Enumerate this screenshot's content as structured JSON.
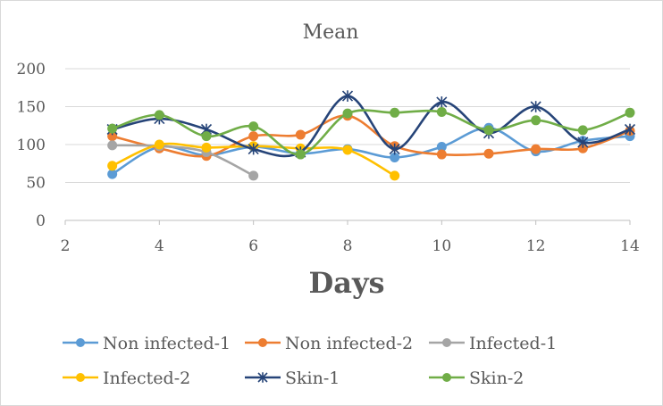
{
  "chart_data": {
    "type": "line",
    "title": "Mean",
    "xlabel": "Days",
    "ylabel": "",
    "xlim": [
      2,
      14
    ],
    "ylim": [
      0,
      200
    ],
    "xticks": [
      2,
      4,
      6,
      8,
      10,
      12,
      14
    ],
    "yticks": [
      0,
      50,
      100,
      150,
      200
    ],
    "grid": true,
    "legend_position": "bottom",
    "series": [
      {
        "name": "Non infected-1",
        "color": "#5B9BD5",
        "marker": "circle",
        "x": [
          3,
          4,
          5,
          6,
          7,
          8,
          9,
          10,
          11,
          12,
          13,
          14
        ],
        "y": [
          61,
          97,
          86,
          97,
          88,
          94,
          83,
          97,
          122,
          91,
          105,
          111
        ]
      },
      {
        "name": "Non infected-2",
        "color": "#ED7D31",
        "marker": "circle",
        "x": [
          3,
          4,
          5,
          6,
          7,
          8,
          9,
          10,
          11,
          12,
          13,
          14
        ],
        "y": [
          111,
          95,
          85,
          111,
          113,
          138,
          98,
          87,
          88,
          94,
          95,
          118
        ]
      },
      {
        "name": "Infected-1",
        "color": "#A5A5A5",
        "marker": "circle",
        "x": [
          3,
          4,
          5,
          6
        ],
        "y": [
          99,
          98,
          90,
          59
        ]
      },
      {
        "name": "Infected-2",
        "color": "#FFC000",
        "marker": "circle",
        "x": [
          3,
          4,
          5,
          6,
          7,
          8,
          9
        ],
        "y": [
          72,
          100,
          96,
          98,
          95,
          93,
          59
        ]
      },
      {
        "name": "Skin-1",
        "color": "#264478",
        "marker": "star",
        "x": [
          3,
          4,
          5,
          6,
          7,
          8,
          9,
          10,
          11,
          12,
          13,
          14
        ],
        "y": [
          120,
          134,
          120,
          94,
          90,
          164,
          94,
          156,
          115,
          150,
          103,
          120
        ]
      },
      {
        "name": "Skin-2",
        "color": "#70AD47",
        "marker": "circle",
        "x": [
          3,
          4,
          5,
          6,
          7,
          8,
          9,
          10,
          11,
          12,
          13,
          14
        ],
        "y": [
          121,
          139,
          111,
          124,
          87,
          141,
          142,
          143,
          119,
          132,
          119,
          142
        ]
      }
    ]
  }
}
